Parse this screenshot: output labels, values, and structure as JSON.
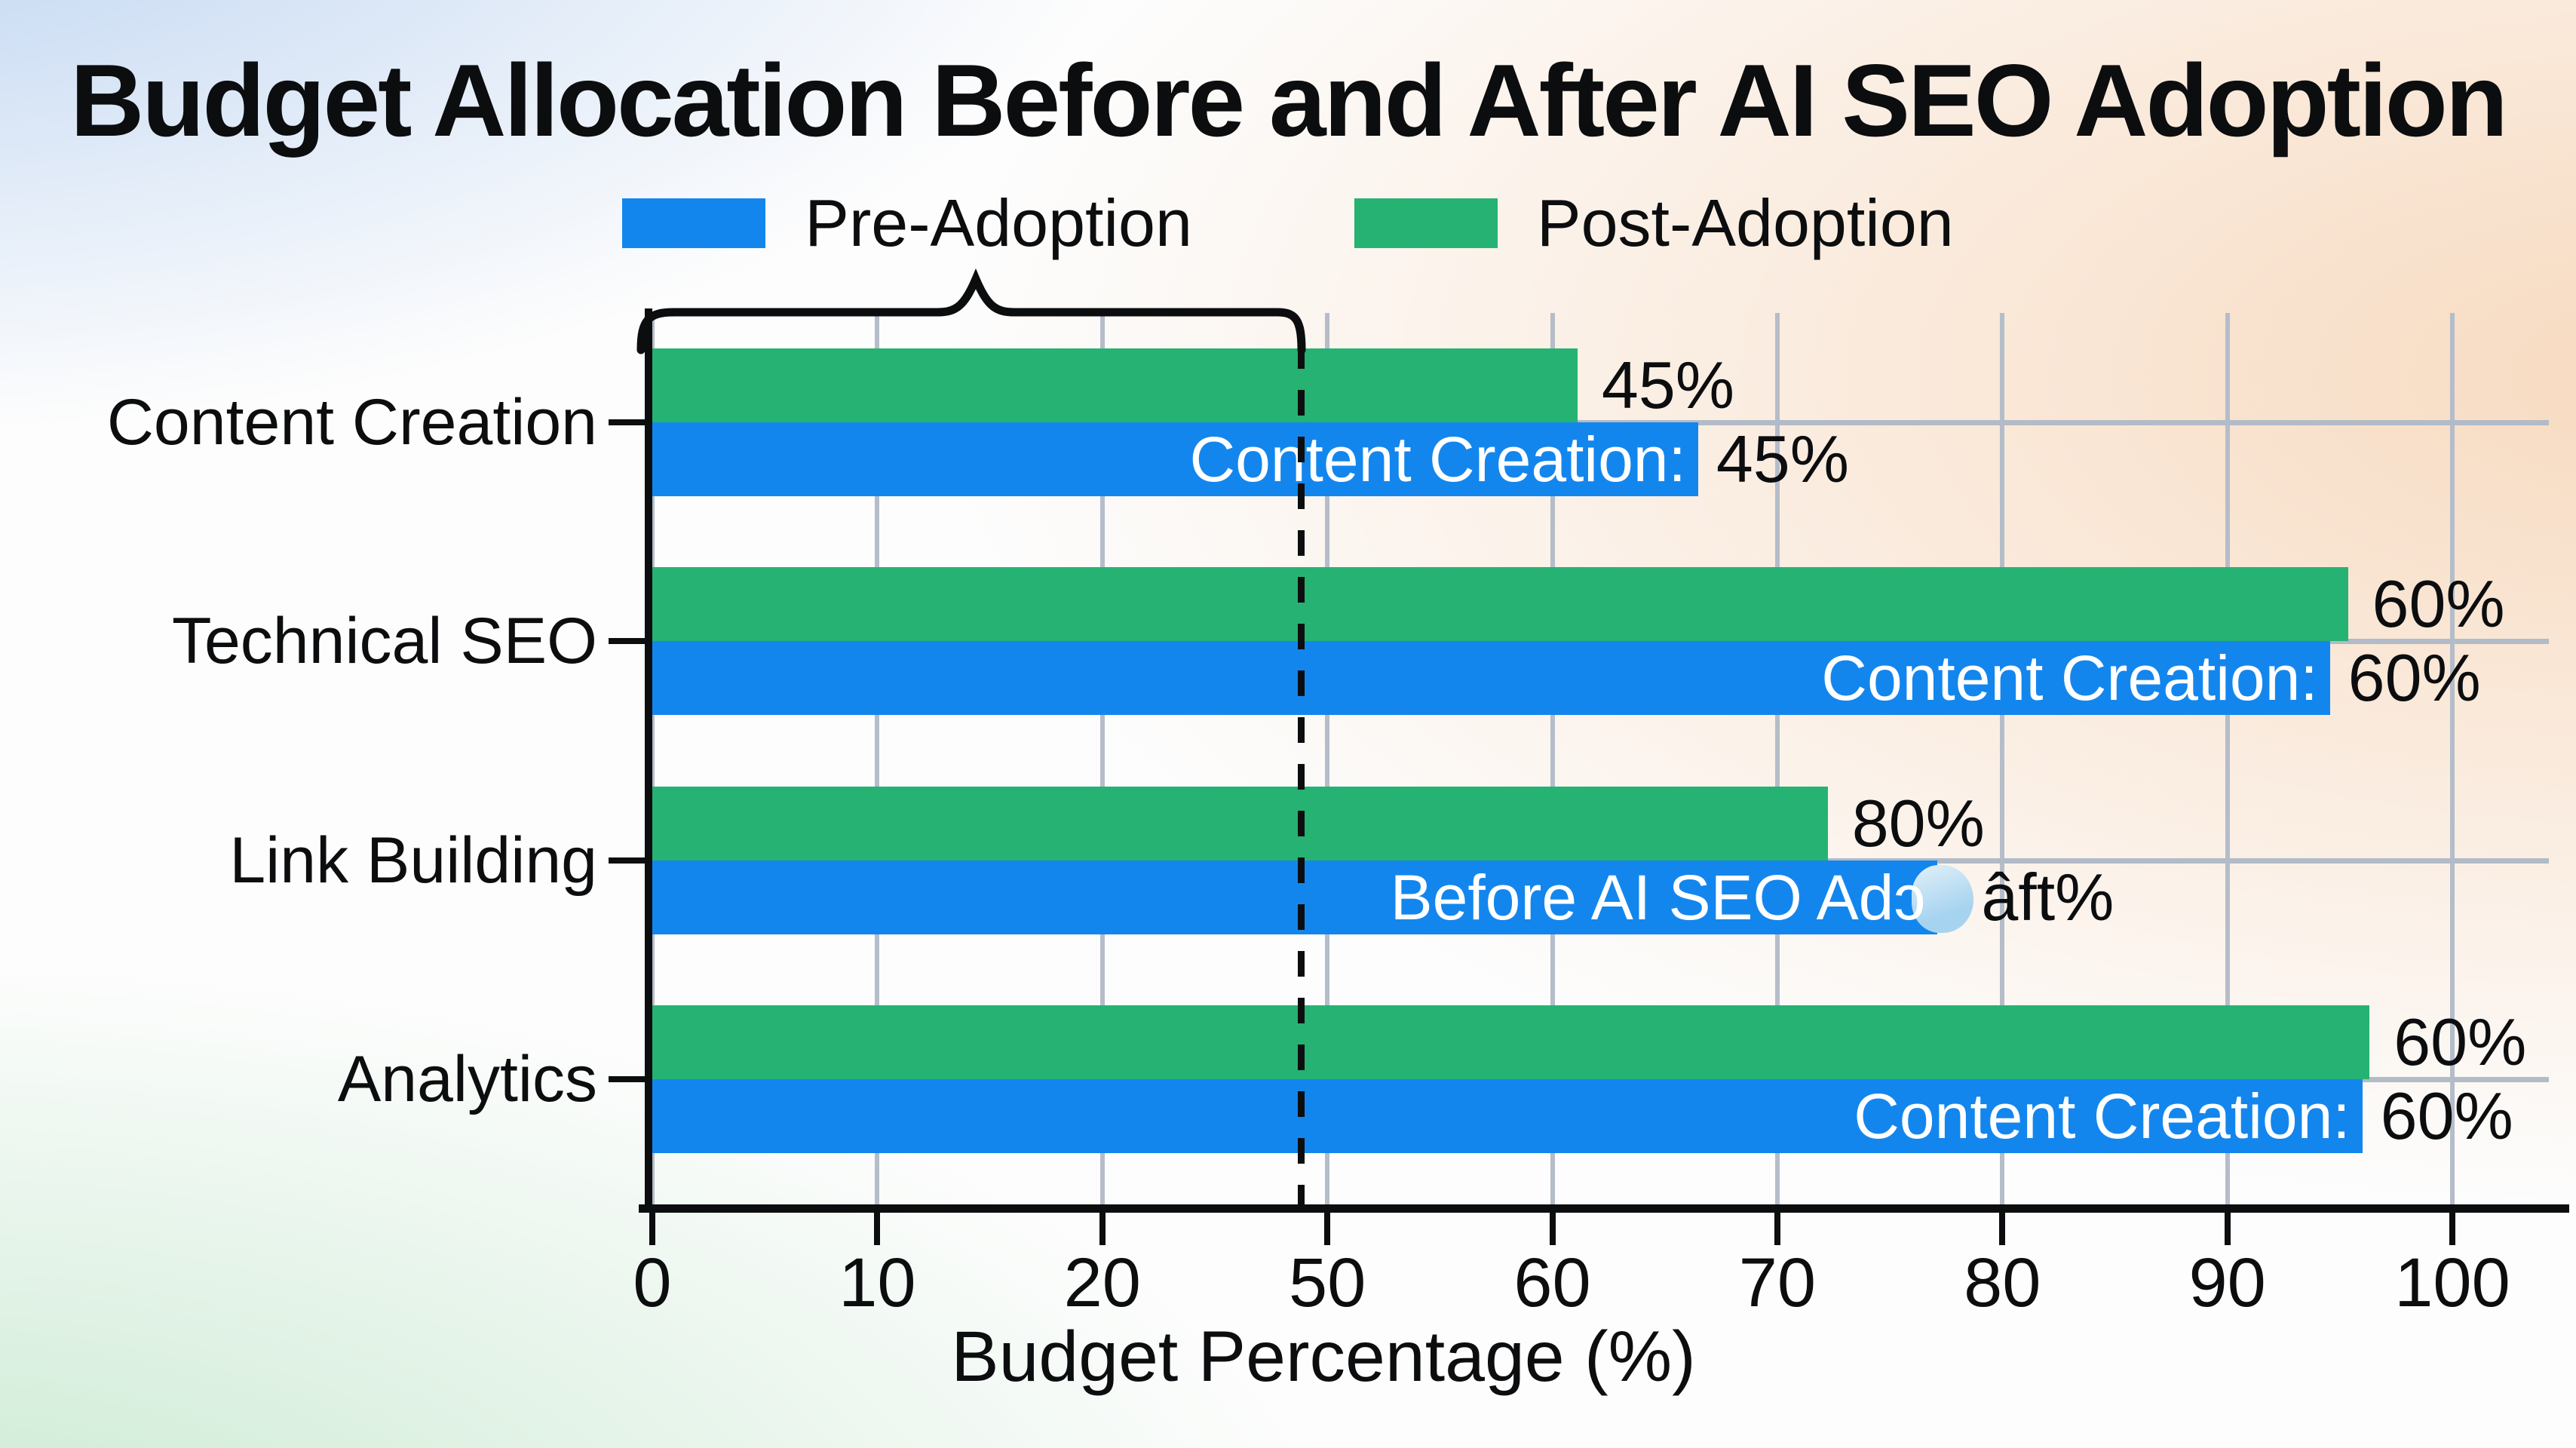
{
  "title": "Budget Allocation Before and After AI SEO Adoption",
  "legend": {
    "items": [
      {
        "label": "Pre-Adoption",
        "color": "#1386ee"
      },
      {
        "label": "Post-Adoption",
        "color": "#26b272"
      }
    ]
  },
  "x_axis": {
    "label": "Budget Percentage (%)",
    "tick_labels": [
      "0",
      "10",
      "20",
      "50",
      "60",
      "70",
      "80",
      "90",
      "100"
    ],
    "evenly_spaced_ticks": true
  },
  "y_axis": {
    "categories": [
      "Content Creation",
      "Technical SEO",
      "Link Building",
      "Analytics"
    ]
  },
  "colors": {
    "pre_adoption_blue": "#1386ee",
    "post_adoption_green": "#26b272",
    "grid": "#b4bdc9",
    "axis_and_text": "#0c0d0f",
    "inside_bar_text": "#ffffff",
    "garbled_glyph_blue": "#a6d3ef"
  },
  "annotations": {
    "brace": "black curly brace over x-axis range 0 to ~48 (just left of the 50 tick), tip pointing up",
    "dashed_line": "black dashed vertical line dropping from the brace's right corner (~48) to the x-axis"
  },
  "chart_data": {
    "type": "bar",
    "orientation": "horizontal",
    "title": "Budget Allocation Before and After AI SEO Adoption",
    "xlabel": "Budget Percentage (%)",
    "x_tick_labels": [
      "0",
      "10",
      "20",
      "50",
      "60",
      "70",
      "80",
      "90",
      "100"
    ],
    "categories": [
      "Content Creation",
      "Technical SEO",
      "Link Building",
      "Analytics"
    ],
    "series_names": [
      "Post-Adoption",
      "Pre-Adoption"
    ],
    "rows": [
      {
        "category": "Content Creation",
        "post": {
          "value_label": "45%",
          "length_pct_of_axis": 51.4
        },
        "pre": {
          "inside_label": "Content Creation:",
          "outside_label": "45%",
          "length_pct_of_axis": 58.1
        }
      },
      {
        "category": "Technical SEO",
        "post": {
          "value_label": "60%",
          "length_pct_of_axis": 94.2
        },
        "pre": {
          "inside_label": "Content Creation:",
          "outside_label": "60%",
          "length_pct_of_axis": 93.2
        }
      },
      {
        "category": "Link Building",
        "post": {
          "value_label": "80%",
          "length_pct_of_axis": 65.3
        },
        "pre": {
          "inside_label": "Before AI SEO Adɔ",
          "outside_label": "âft%",
          "length_pct_of_axis": 71.4,
          "garbled_blob": true
        }
      },
      {
        "category": "Analytics",
        "post": {
          "value_label": "60%",
          "length_pct_of_axis": 95.4
        },
        "pre": {
          "inside_label": "Content Creation:",
          "outside_label": "60%",
          "length_pct_of_axis": 95.0
        }
      }
    ],
    "note": "Tick labels jump from 20 to 50 although ticks are evenly spaced; printed % labels do not match drawn bar lengths; Link Building row shows garbled tooltip text."
  }
}
